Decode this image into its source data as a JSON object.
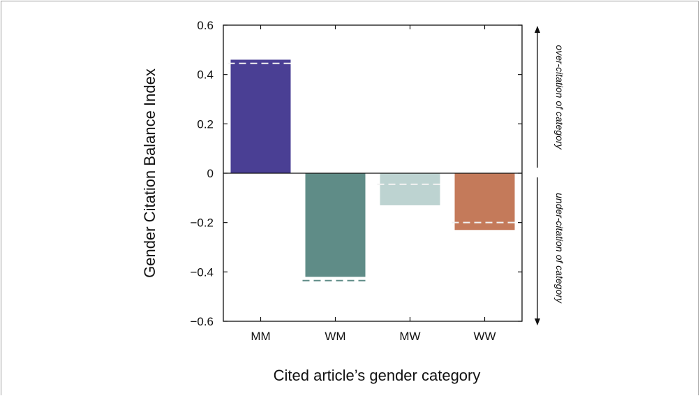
{
  "chart_data": {
    "type": "bar",
    "categories": [
      "MM",
      "WM",
      "MW",
      "WW"
    ],
    "values": [
      0.46,
      -0.42,
      -0.13,
      -0.23
    ],
    "expected": [
      0.445,
      -0.435,
      -0.045,
      -0.2
    ],
    "xlabel": "Cited article’s gender category",
    "ylabel": "Gender Citation Balance Index",
    "ylim": [
      -0.6,
      0.6
    ],
    "yticks": [
      0.6,
      0.4,
      0.2,
      0,
      -0.2,
      -0.4,
      -0.6
    ],
    "ytick_labels": [
      "0.6",
      "0.4",
      "0.2",
      "0",
      "−0.2",
      "−0.4",
      "−0.6"
    ],
    "grid": false,
    "annotations": {
      "over": "over-citation of category",
      "under": "under-citation of category"
    },
    "colors": {
      "bars": [
        "#4a3f94",
        "#5f8c87",
        "#bdd3d1",
        "#c47a5a"
      ],
      "expected_lines": [
        "#f2f2f2",
        "#5f8c87",
        "#f2f2f2",
        "#f2f2f2"
      ]
    }
  }
}
